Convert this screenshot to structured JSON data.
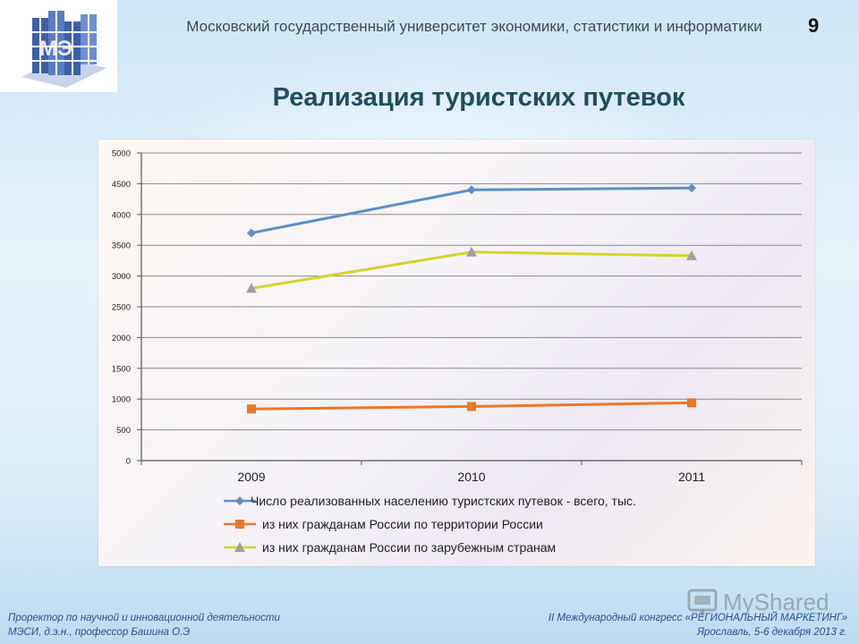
{
  "header": {
    "university": "Московский государственный университет экономики, статистики и информатики",
    "slide_number": "9"
  },
  "title": "Реализация туристских путевок",
  "chart_data": {
    "type": "line",
    "categories": [
      "2009",
      "2010",
      "2011"
    ],
    "ylim": [
      0,
      5000
    ],
    "yticks": [
      0,
      500,
      1000,
      1500,
      2000,
      2500,
      3000,
      3500,
      4000,
      4500,
      5000
    ],
    "grid": true,
    "legend_position": "bottom",
    "series": [
      {
        "name": "Число реализованных населению туристских путевок - всего, тыс.",
        "values": [
          3700,
          4400,
          4430
        ],
        "color": "#5b8fc7",
        "marker": "diamond"
      },
      {
        "name": "из них гражданам России по территории России",
        "values": [
          840,
          880,
          940
        ],
        "color": "#e8782a",
        "marker": "square"
      },
      {
        "name": "из них гражданам России по зарубежным странам",
        "values": [
          2800,
          3390,
          3330
        ],
        "color": "#d4d42a",
        "marker": "triangle",
        "marker_color": "#a0a0a0"
      }
    ]
  },
  "footer": {
    "left_line1": "Проректор по научной и инновационной деятельности",
    "left_line2": "МЭСИ, д.э.н., профессор Башина О.Э",
    "right_line1": "II Международный конгресс «РЕГИОНАЛЬНЫЙ МАРКЕТИНГ»",
    "right_line2": "Ярославль, 5-6 декабря 2013 г."
  },
  "watermark": "MyShared"
}
